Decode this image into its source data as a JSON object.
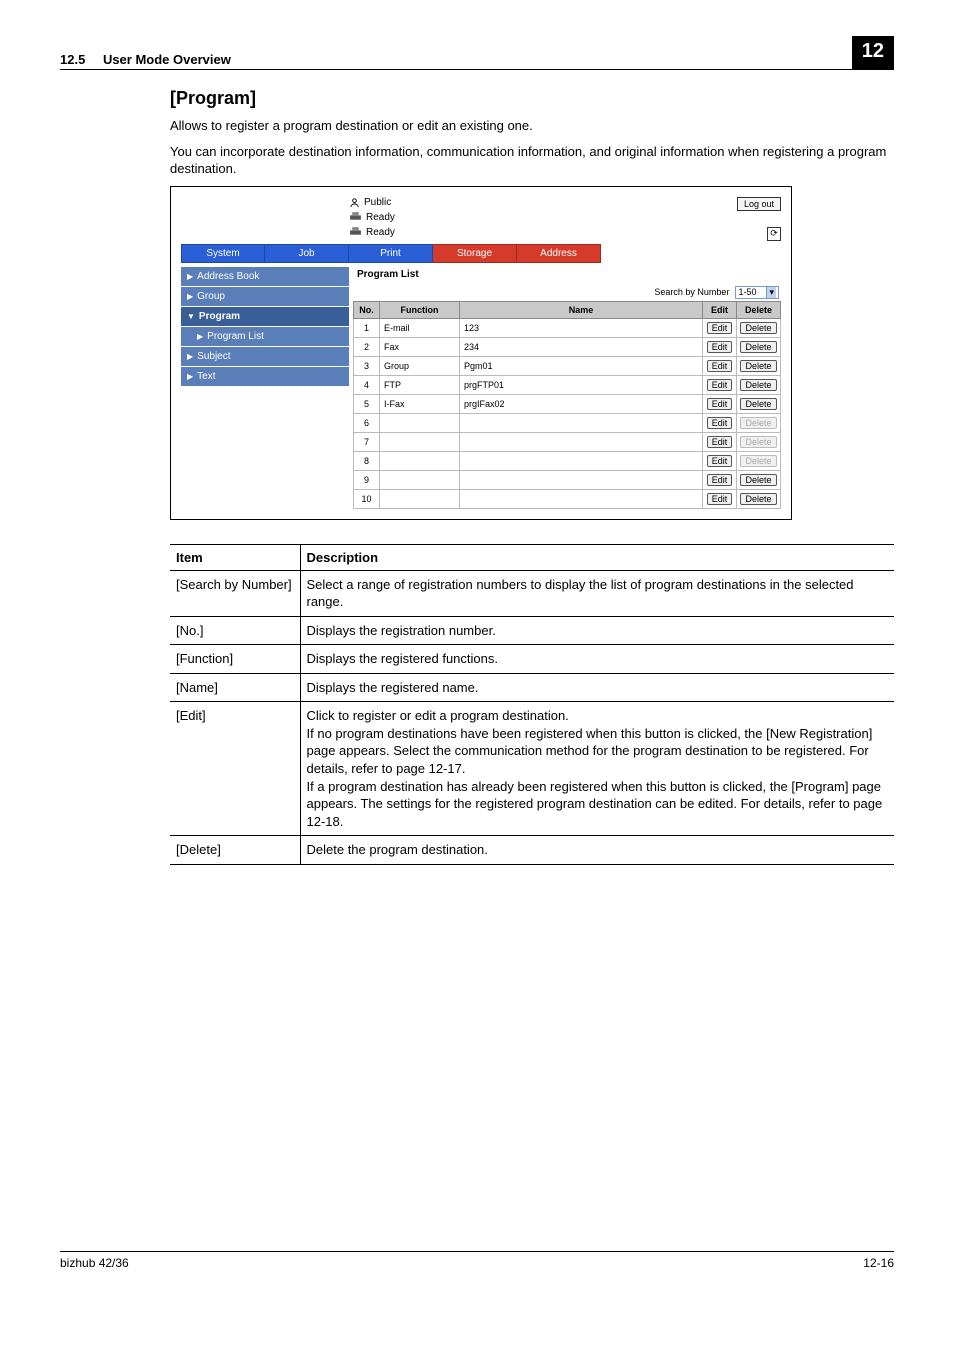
{
  "header": {
    "section_number": "12.5",
    "section_title": "User Mode Overview",
    "chapter_badge": "12"
  },
  "heading": "[Program]",
  "para1": "Allows to register a program destination or edit an existing one.",
  "para2": "You can incorporate destination information, communication information, and original information when registering a program destination.",
  "ui": {
    "user_label": "Public",
    "ready1": "Ready",
    "ready2": "Ready",
    "logout": "Log out",
    "top_tabs": {
      "system": "System",
      "job": "Job",
      "print": "Print",
      "storage": "Storage",
      "address": "Address"
    },
    "sidebar": {
      "address_book": "Address Book",
      "group": "Group",
      "program": "Program",
      "program_list": "Program List",
      "subject": "Subject",
      "text": "Text"
    },
    "panel_title": "Program List",
    "search_label": "Search by Number",
    "search_value": "1-50",
    "cols": {
      "no": "No.",
      "func": "Function",
      "name": "Name",
      "edit": "Edit",
      "delete": "Delete"
    },
    "btn_edit": "Edit",
    "btn_delete": "Delete",
    "rows": [
      {
        "no": "1",
        "func": "E-mail",
        "name": "123",
        "del_enabled": true
      },
      {
        "no": "2",
        "func": "Fax",
        "name": "234",
        "del_enabled": true
      },
      {
        "no": "3",
        "func": "Group",
        "name": "Pgm01",
        "del_enabled": true
      },
      {
        "no": "4",
        "func": "FTP",
        "name": "prgFTP01",
        "del_enabled": true
      },
      {
        "no": "5",
        "func": "I-Fax",
        "name": "prgIFax02",
        "del_enabled": true
      },
      {
        "no": "6",
        "func": "",
        "name": "",
        "del_enabled": false
      },
      {
        "no": "7",
        "func": "",
        "name": "",
        "del_enabled": false
      },
      {
        "no": "8",
        "func": "",
        "name": "",
        "del_enabled": false
      },
      {
        "no": "9",
        "func": "",
        "name": "",
        "del_enabled": true
      },
      {
        "no": "10",
        "func": "",
        "name": "",
        "del_enabled": true
      }
    ]
  },
  "desc": {
    "head_item": "Item",
    "head_desc": "Description",
    "rows": [
      {
        "item": "[Search by Number]",
        "desc": "Select a range of registration numbers to display the list of program destinations in the selected range."
      },
      {
        "item": "[No.]",
        "desc": "Displays the registration number."
      },
      {
        "item": "[Function]",
        "desc": "Displays the registered functions."
      },
      {
        "item": "[Name]",
        "desc": "Displays the registered name."
      },
      {
        "item": "[Edit]",
        "desc": "Click to register or edit a program destination.\nIf no program destinations have been registered when this button is clicked, the [New Registration] page appears. Select the communication method for the program destination to be registered. For details, refer to page 12-17.\nIf a program destination has already been registered when this button is clicked, the [Program] page appears. The settings for the registered program destination can be edited. For details, refer to page 12-18."
      },
      {
        "item": "[Delete]",
        "desc": "Delete the program destination."
      }
    ]
  },
  "footer": {
    "left": "bizhub 42/36",
    "right": "12-16"
  }
}
